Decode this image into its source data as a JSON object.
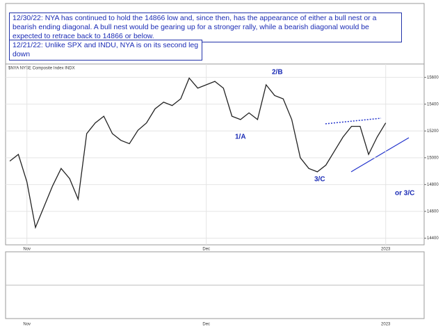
{
  "chart_data": {
    "type": "line",
    "title": "$NYA NYSE Composite Index INDX",
    "categories": [
      null,
      null,
      "Nov",
      null,
      null,
      null,
      null,
      null,
      null,
      null,
      null,
      null,
      null,
      null,
      null,
      null,
      null,
      null,
      null,
      null,
      null,
      null,
      null,
      "Dec",
      null,
      null,
      null,
      null,
      null,
      null,
      null,
      null,
      null,
      null,
      null,
      null,
      null,
      null,
      null,
      null,
      null,
      null,
      null,
      null,
      "2023",
      null,
      null,
      null,
      null
    ],
    "series": [
      {
        "name": "NYA",
        "color": "#222222",
        "values": [
          14975,
          15025,
          14820,
          14480,
          14635,
          14790,
          14920,
          14845,
          14690,
          15180,
          15260,
          15310,
          15180,
          15130,
          15105,
          15205,
          15260,
          15365,
          15415,
          15390,
          15440,
          15595,
          15520,
          15545,
          15570,
          15520,
          15310,
          15285,
          15335,
          15285,
          15545,
          15465,
          15440,
          15285,
          15000,
          14920,
          14895,
          14945,
          15050,
          15155,
          15235,
          15235,
          15025,
          15155,
          15260,
          null,
          null,
          null,
          null
        ]
      }
    ],
    "ylim": [
      14350,
      15700
    ],
    "yticks": [
      14400,
      14600,
      14800,
      15000,
      15200,
      15400,
      15600
    ],
    "grid": true,
    "notes": [
      "12/30/22:  NYA has continued to hold the 14866 low and, since then, has the appearance of either a bull nest or a bearish ending diagonal.  A bull nest would be gearing up for a stronger rally, while a bearish diagonal would be expected to retrace back to 14866 or below.",
      "12/21/22:  Unlike SPX and INDU, NYA is on its second leg down"
    ],
    "annotations": [
      "2/B",
      "1/A",
      "3/C",
      "or 3/C"
    ]
  }
}
